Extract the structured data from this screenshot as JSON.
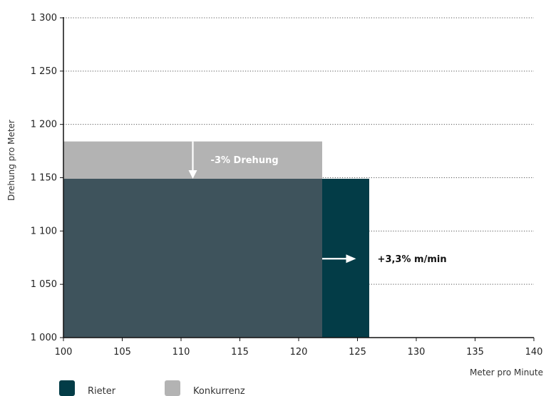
{
  "chart_data": {
    "type": "bar",
    "xlabel": "Meter pro Minute",
    "ylabel": "Drehung pro Meter",
    "xlim": [
      100,
      140
    ],
    "ylim": [
      1000,
      1300
    ],
    "xticks": [
      100,
      105,
      110,
      115,
      120,
      125,
      130,
      135,
      140
    ],
    "yticks": [
      1000,
      1050,
      1100,
      1150,
      1200,
      1250,
      1300
    ],
    "ytick_labels": [
      "1 000",
      "1 050",
      "1 100",
      "1 150",
      "1 200",
      "1 250",
      "1 300"
    ],
    "grid": "horizontal dotted",
    "legend_position": "bottom-left",
    "series": [
      {
        "name": "Rieter",
        "color": "#033c47",
        "x": 126,
        "y": 1149
      },
      {
        "name": "Konkurrenz",
        "color": "#b3b3b3",
        "x": 122,
        "y": 1184
      }
    ],
    "overlap_color": "#3e535c",
    "annotations": [
      {
        "text": "-3% Drehung",
        "color": "#ffffff"
      },
      {
        "text": "+3,3% m/min",
        "color": "#111111"
      }
    ]
  }
}
